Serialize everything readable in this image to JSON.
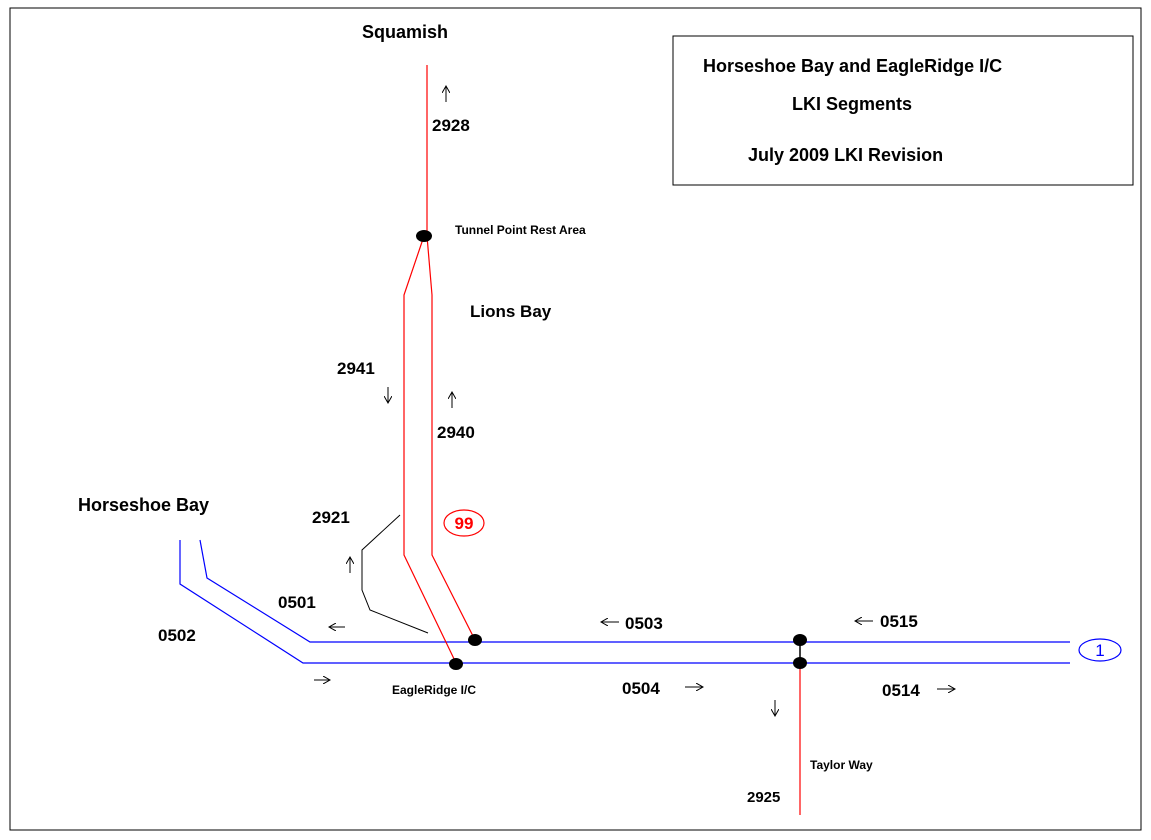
{
  "title_box": {
    "line1": "Horseshoe Bay and EagleRidge I/C",
    "line2": "LKI Segments",
    "line3": "July 2009 LKI Revision"
  },
  "places": {
    "squamish": "Squamish",
    "tunnel_point": "Tunnel Point Rest Area",
    "lions_bay": "Lions Bay",
    "horseshoe_bay": "Horseshoe Bay",
    "eagleridge": "EagleRidge I/C",
    "taylor_way": "Taylor Way"
  },
  "routes": {
    "hwy99": "99",
    "hwy1": "1"
  },
  "segments": {
    "s2928": "2928",
    "s2941": "2941",
    "s2940": "2940",
    "s2921": "2921",
    "s0501": "0501",
    "s0502": "0502",
    "s0503": "0503",
    "s0515": "0515",
    "s0504": "0504",
    "s0514": "0514",
    "s2925": "2925"
  }
}
